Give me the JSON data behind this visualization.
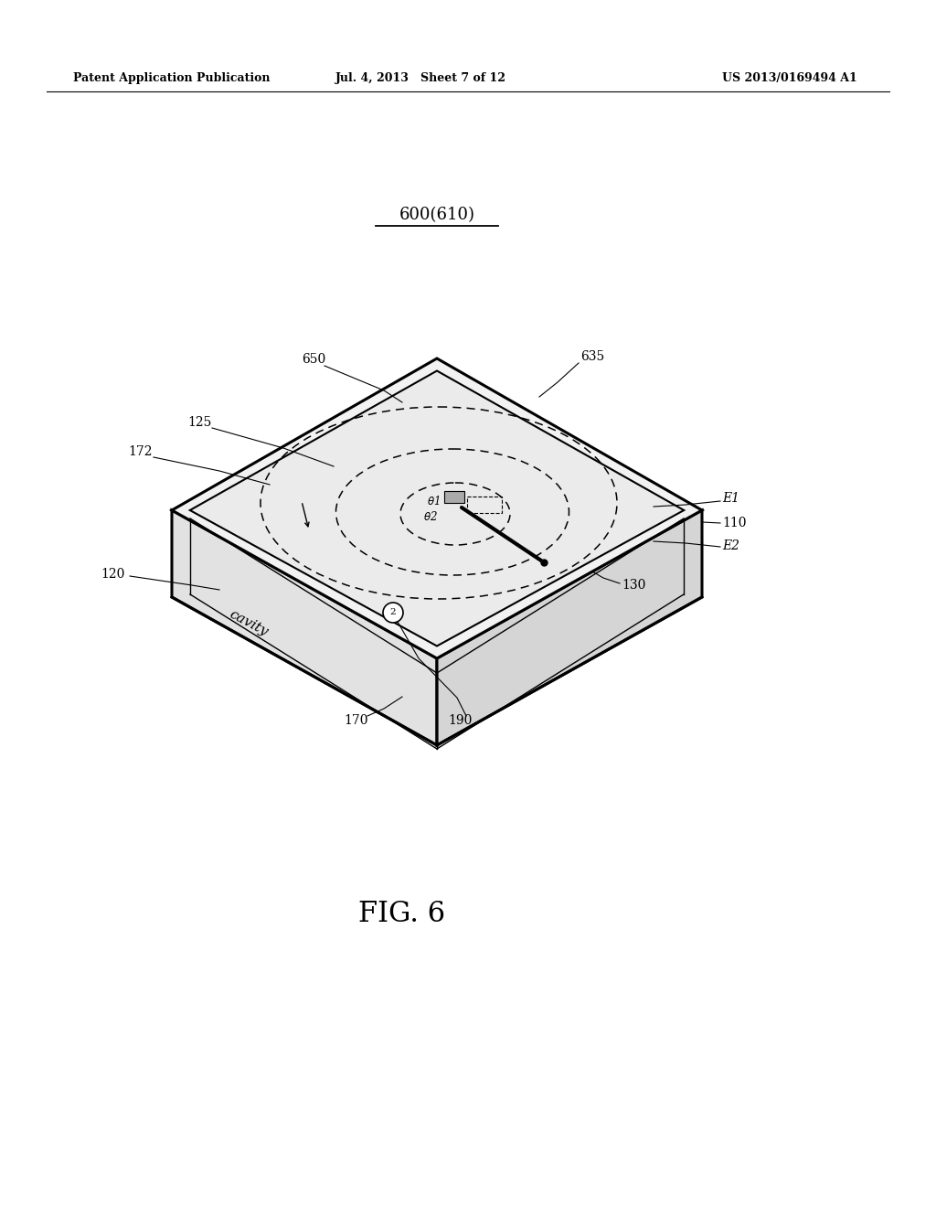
{
  "bg_color": "#ffffff",
  "line_color": "#000000",
  "header_left": "Patent Application Publication",
  "header_mid": "Jul. 4, 2013   Sheet 7 of 12",
  "header_right": "US 2013/0169494 A1",
  "figure_label": "FIG. 6",
  "main_label": "600(610)",
  "header_fontsize": 9,
  "main_label_fontsize": 13,
  "fig_label_fontsize": 22,
  "ref_fontsize": 10,
  "cavity_fontsize": 11
}
